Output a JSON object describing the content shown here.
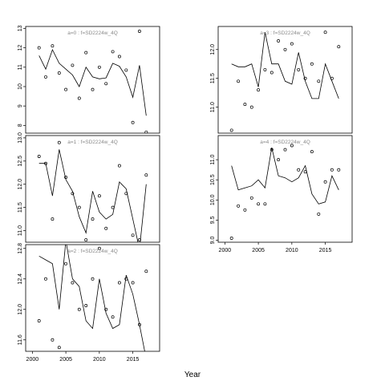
{
  "chart_data": [
    {
      "type": "scatter",
      "title": "a=0  :  f=SD2224w_4Q",
      "xlim": [
        1999,
        2019
      ],
      "ylim": [
        7.6,
        13.1
      ],
      "yticks": [
        8,
        9,
        10,
        11,
        12,
        13
      ],
      "xticks": [],
      "series": [
        {
          "kind": "points",
          "x": [
            2001,
            2002,
            2003,
            2004,
            2005,
            2006,
            2007,
            2008,
            2009,
            2010,
            2011,
            2012,
            2013,
            2014,
            2015,
            2016,
            2017
          ],
          "y": [
            12.0,
            10.5,
            12.1,
            10.7,
            9.85,
            11.1,
            9.4,
            11.75,
            9.85,
            11.0,
            10.15,
            11.8,
            11.55,
            10.85,
            8.15,
            12.85,
            7.65
          ]
        },
        {
          "kind": "line",
          "x": [
            2001,
            2002,
            2003,
            2004,
            2005,
            2006,
            2007,
            2008,
            2009,
            2010,
            2011,
            2012,
            2013,
            2014,
            2015,
            2016,
            2017
          ],
          "y": [
            11.6,
            10.9,
            11.9,
            11.2,
            10.9,
            10.6,
            10.0,
            11.0,
            10.5,
            10.4,
            10.45,
            11.2,
            11.05,
            10.5,
            9.45,
            11.1,
            8.5
          ]
        }
      ]
    },
    {
      "type": "scatter",
      "title": "a=1  :  f=SD2224w_4Q",
      "xlim": [
        1999,
        2019
      ],
      "ylim": [
        10.75,
        13.05
      ],
      "yticks": [
        11.0,
        11.5,
        12.0,
        12.5,
        13.0
      ],
      "xticks": [],
      "series": [
        {
          "kind": "points",
          "x": [
            2001,
            2002,
            2003,
            2004,
            2005,
            2006,
            2007,
            2008,
            2009,
            2010,
            2011,
            2012,
            2013,
            2014,
            2015,
            2016,
            2017
          ],
          "y": [
            12.6,
            12.45,
            11.25,
            12.9,
            12.15,
            11.8,
            11.5,
            10.8,
            11.25,
            11.75,
            11.05,
            11.5,
            12.4,
            11.8,
            10.9,
            10.8,
            12.2
          ]
        },
        {
          "kind": "line",
          "x": [
            2001,
            2002,
            2003,
            2004,
            2005,
            2006,
            2007,
            2008,
            2009,
            2010,
            2011,
            2012,
            2013,
            2014,
            2015,
            2016,
            2017
          ],
          "y": [
            12.45,
            12.45,
            11.75,
            12.75,
            12.1,
            11.85,
            11.3,
            10.95,
            11.85,
            11.4,
            11.25,
            11.35,
            12.05,
            11.9,
            11.25,
            10.6,
            12.0
          ]
        }
      ]
    },
    {
      "type": "scatter",
      "title": "a=2  :  f=SD2224w_4Q",
      "xlim": [
        1999,
        2019
      ],
      "ylim": [
        11.45,
        12.85
      ],
      "yticks": [
        11.6,
        12.0,
        12.4,
        12.8
      ],
      "xticks": [
        2000,
        2005,
        2010,
        2015
      ],
      "series": [
        {
          "kind": "points",
          "x": [
            2001,
            2002,
            2003,
            2004,
            2005,
            2006,
            2007,
            2008,
            2009,
            2010,
            2011,
            2012,
            2013,
            2014,
            2015,
            2016,
            2017
          ],
          "y": [
            11.85,
            12.4,
            11.6,
            11.5,
            12.6,
            12.35,
            12.0,
            12.05,
            12.4,
            12.8,
            12.0,
            11.9,
            12.35,
            12.4,
            12.35,
            11.8,
            12.5
          ]
        },
        {
          "kind": "line",
          "x": [
            2001,
            2002,
            2003,
            2004,
            2005,
            2006,
            2007,
            2008,
            2009,
            2010,
            2011,
            2012,
            2013,
            2014,
            2015,
            2016,
            2017
          ],
          "y": [
            12.7,
            12.65,
            12.6,
            12.0,
            12.9,
            12.4,
            12.3,
            11.85,
            11.75,
            12.4,
            11.95,
            11.75,
            11.8,
            12.45,
            12.2,
            11.8,
            11.35
          ]
        }
      ]
    },
    {
      "type": "scatter",
      "title": "a=3  :  f=SD2224w_4Q",
      "xlim": [
        1999,
        2019
      ],
      "ylim": [
        10.55,
        12.4
      ],
      "yticks": [
        11.0,
        11.5,
        12.0
      ],
      "xticks": [],
      "series": [
        {
          "kind": "points",
          "x": [
            2001,
            2002,
            2003,
            2004,
            2005,
            2006,
            2007,
            2008,
            2009,
            2010,
            2011,
            2012,
            2013,
            2014,
            2015,
            2016,
            2017
          ],
          "y": [
            10.6,
            11.45,
            11.05,
            11.0,
            11.3,
            11.65,
            11.6,
            12.15,
            12.0,
            12.1,
            11.65,
            11.5,
            11.75,
            11.45,
            12.3,
            11.5,
            12.05
          ]
        },
        {
          "kind": "line",
          "x": [
            2001,
            2002,
            2003,
            2004,
            2005,
            2006,
            2007,
            2008,
            2009,
            2010,
            2011,
            2012,
            2013,
            2014,
            2015,
            2016,
            2017
          ],
          "y": [
            11.75,
            11.7,
            11.7,
            11.75,
            11.35,
            12.3,
            11.75,
            11.75,
            11.45,
            11.4,
            11.95,
            11.45,
            11.15,
            11.15,
            11.75,
            11.45,
            11.15
          ]
        }
      ]
    },
    {
      "type": "scatter",
      "title": "a=4  :  f=SD2224w_4Q",
      "xlim": [
        1999,
        2019
      ],
      "ylim": [
        8.95,
        11.6
      ],
      "yticks": [
        9.0,
        9.5,
        10.0,
        10.5,
        11.0
      ],
      "xticks": [
        2000,
        2005,
        2010,
        2015
      ],
      "series": [
        {
          "kind": "points",
          "x": [
            2001,
            2002,
            2003,
            2004,
            2005,
            2006,
            2007,
            2008,
            2009,
            2010,
            2011,
            2012,
            2013,
            2014,
            2015,
            2016,
            2017
          ],
          "y": [
            9.05,
            9.85,
            9.75,
            10.05,
            9.9,
            9.9,
            11.25,
            11.0,
            11.25,
            11.35,
            10.75,
            10.7,
            11.2,
            9.65,
            10.45,
            10.75,
            10.75
          ]
        },
        {
          "kind": "line",
          "x": [
            2001,
            2002,
            2003,
            2004,
            2005,
            2006,
            2007,
            2008,
            2009,
            2010,
            2011,
            2012,
            2013,
            2014,
            2015,
            2016,
            2017
          ],
          "y": [
            10.85,
            10.25,
            10.3,
            10.35,
            10.5,
            10.3,
            11.3,
            10.6,
            10.55,
            10.45,
            10.55,
            10.85,
            10.15,
            9.9,
            9.95,
            10.6,
            10.25
          ]
        }
      ]
    }
  ],
  "xlabel": "Year"
}
